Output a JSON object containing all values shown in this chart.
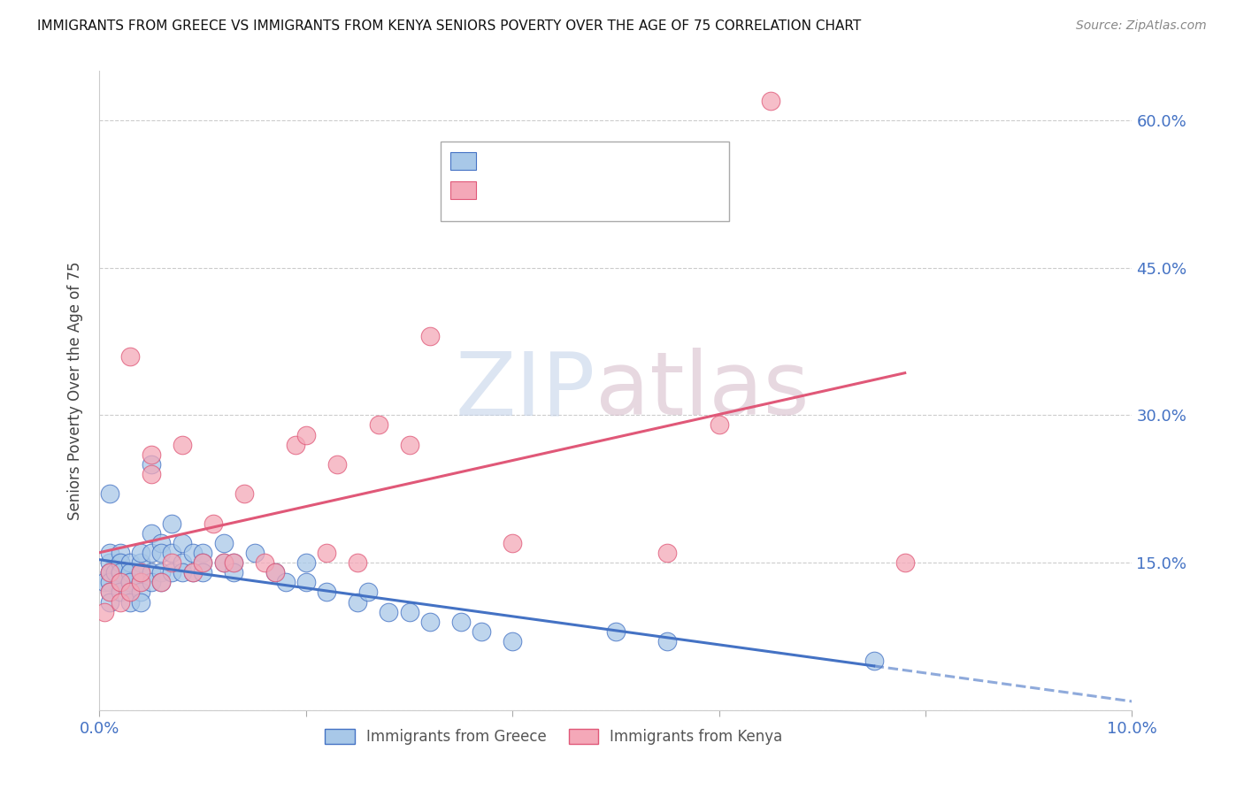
{
  "title": "IMMIGRANTS FROM GREECE VS IMMIGRANTS FROM KENYA SENIORS POVERTY OVER THE AGE OF 75 CORRELATION CHART",
  "source": "Source: ZipAtlas.com",
  "ylabel": "Seniors Poverty Over the Age of 75",
  "legend_label1": "Immigrants from Greece",
  "legend_label2": "Immigrants from Kenya",
  "xlim": [
    0.0,
    0.1
  ],
  "ylim": [
    0.0,
    0.65
  ],
  "yticks": [
    0.0,
    0.15,
    0.3,
    0.45,
    0.6
  ],
  "ytick_labels": [
    "",
    "15.0%",
    "30.0%",
    "45.0%",
    "60.0%"
  ],
  "xticks": [
    0.0,
    0.02,
    0.04,
    0.06,
    0.08,
    0.1
  ],
  "xtick_labels": [
    "0.0%",
    "",
    "",
    "",
    "",
    "10.0%"
  ],
  "color_greece": "#a8c8e8",
  "color_kenya": "#f4a8b8",
  "color_greece_line": "#4472c4",
  "color_kenya_line": "#e05878",
  "color_axis_text": "#4472c4",
  "greece_x": [
    0.0005,
    0.001,
    0.001,
    0.001,
    0.001,
    0.001,
    0.001,
    0.001,
    0.001,
    0.0015,
    0.002,
    0.002,
    0.002,
    0.002,
    0.002,
    0.002,
    0.002,
    0.002,
    0.003,
    0.003,
    0.003,
    0.003,
    0.003,
    0.003,
    0.003,
    0.004,
    0.004,
    0.004,
    0.004,
    0.004,
    0.004,
    0.005,
    0.005,
    0.005,
    0.005,
    0.005,
    0.006,
    0.006,
    0.006,
    0.006,
    0.007,
    0.007,
    0.007,
    0.008,
    0.008,
    0.008,
    0.009,
    0.009,
    0.01,
    0.01,
    0.01,
    0.012,
    0.012,
    0.013,
    0.013,
    0.015,
    0.017,
    0.018,
    0.02,
    0.02,
    0.022,
    0.025,
    0.026,
    0.028,
    0.03,
    0.032,
    0.035,
    0.037,
    0.04,
    0.05,
    0.055,
    0.075
  ],
  "greece_y": [
    0.13,
    0.22,
    0.14,
    0.15,
    0.16,
    0.14,
    0.13,
    0.12,
    0.11,
    0.14,
    0.15,
    0.14,
    0.13,
    0.16,
    0.15,
    0.14,
    0.13,
    0.12,
    0.14,
    0.13,
    0.15,
    0.14,
    0.13,
    0.12,
    0.11,
    0.15,
    0.16,
    0.14,
    0.13,
    0.12,
    0.11,
    0.25,
    0.18,
    0.16,
    0.14,
    0.13,
    0.17,
    0.16,
    0.14,
    0.13,
    0.19,
    0.16,
    0.14,
    0.17,
    0.15,
    0.14,
    0.16,
    0.14,
    0.16,
    0.15,
    0.14,
    0.17,
    0.15,
    0.15,
    0.14,
    0.16,
    0.14,
    0.13,
    0.15,
    0.13,
    0.12,
    0.11,
    0.12,
    0.1,
    0.1,
    0.09,
    0.09,
    0.08,
    0.07,
    0.08,
    0.07,
    0.05
  ],
  "kenya_x": [
    0.0005,
    0.001,
    0.001,
    0.002,
    0.002,
    0.003,
    0.003,
    0.004,
    0.004,
    0.005,
    0.005,
    0.006,
    0.007,
    0.008,
    0.009,
    0.01,
    0.011,
    0.012,
    0.013,
    0.014,
    0.016,
    0.017,
    0.019,
    0.02,
    0.022,
    0.023,
    0.025,
    0.027,
    0.03,
    0.032,
    0.04,
    0.055,
    0.06,
    0.065,
    0.078
  ],
  "kenya_y": [
    0.1,
    0.12,
    0.14,
    0.13,
    0.11,
    0.36,
    0.12,
    0.13,
    0.14,
    0.24,
    0.26,
    0.13,
    0.15,
    0.27,
    0.14,
    0.15,
    0.19,
    0.15,
    0.15,
    0.22,
    0.15,
    0.14,
    0.27,
    0.28,
    0.16,
    0.25,
    0.15,
    0.29,
    0.27,
    0.38,
    0.17,
    0.16,
    0.29,
    0.62,
    0.15
  ]
}
